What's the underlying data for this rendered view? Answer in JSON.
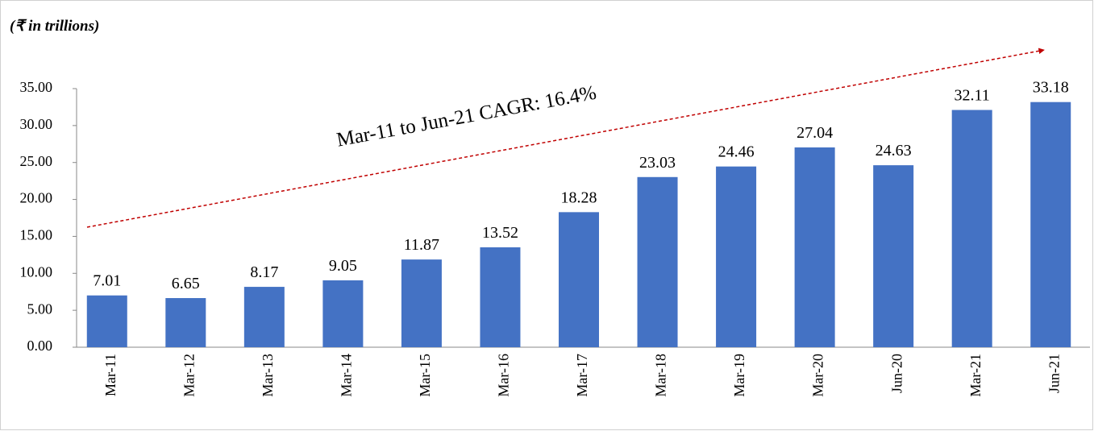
{
  "chart_data": {
    "type": "bar",
    "subtitle": "(₹ in trillions)",
    "annotation": "Mar-11 to Jun-21 CAGR: 16.4%",
    "categories": [
      "Mar-11",
      "Mar-12",
      "Mar-13",
      "Mar-14",
      "Mar-15",
      "Mar-16",
      "Mar-17",
      "Mar-18",
      "Mar-19",
      "Mar-20",
      "Jun-20",
      "Mar-21",
      "Jun-21"
    ],
    "values": [
      7.01,
      6.65,
      8.17,
      9.05,
      11.87,
      13.52,
      18.28,
      23.03,
      24.46,
      27.04,
      24.63,
      32.11,
      33.18
    ],
    "color": "#4472c4",
    "ylim": [
      0,
      35
    ],
    "yticks": [
      {
        "value": 0,
        "label": "0.00"
      },
      {
        "value": 5,
        "label": "5.00"
      },
      {
        "value": 10,
        "label": "10.00"
      },
      {
        "value": 15,
        "label": "15.00"
      },
      {
        "value": 20,
        "label": "20.00"
      },
      {
        "value": 25,
        "label": "25.00"
      },
      {
        "value": 30,
        "label": "30.00"
      },
      {
        "value": 35,
        "label": "35.00"
      }
    ],
    "grid": false
  }
}
